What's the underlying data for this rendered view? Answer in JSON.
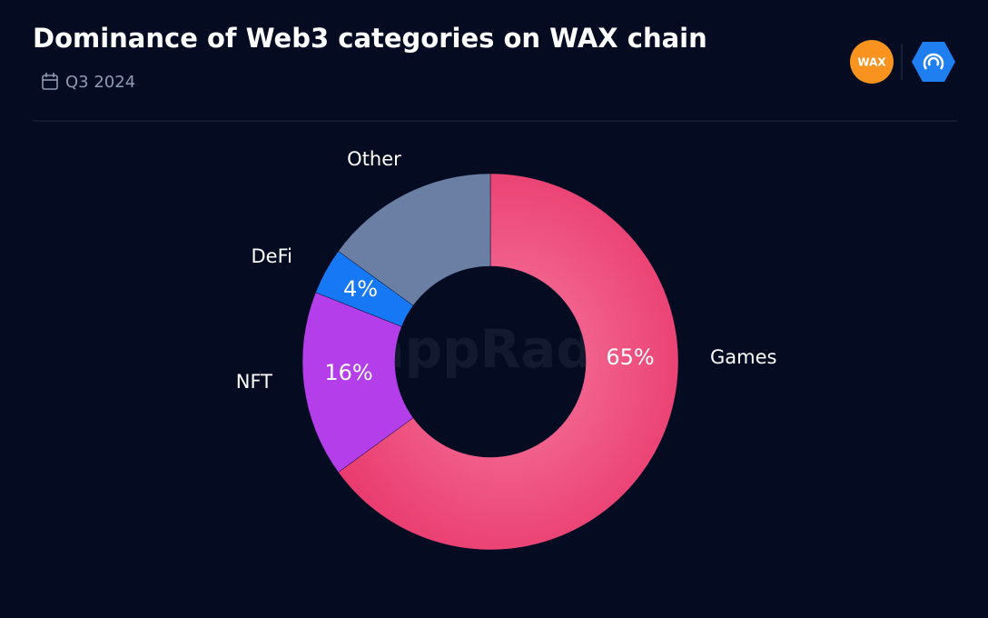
{
  "chart_data": {
    "type": "pie",
    "title": "Dominance of Web3 categories on WAX chain",
    "subtitle": "Q3 2024",
    "categories": [
      "Games",
      "NFT",
      "DeFi",
      "Other"
    ],
    "values": [
      65,
      16,
      4,
      15
    ],
    "value_labels": [
      "65%",
      "16%",
      "4%",
      null
    ],
    "colors": [
      "#e8386c",
      "#b43ee9",
      "#1778f6",
      "#6b7ea3"
    ],
    "donut": true
  },
  "watermark": "DappRadar",
  "logo_text": "WAX"
}
